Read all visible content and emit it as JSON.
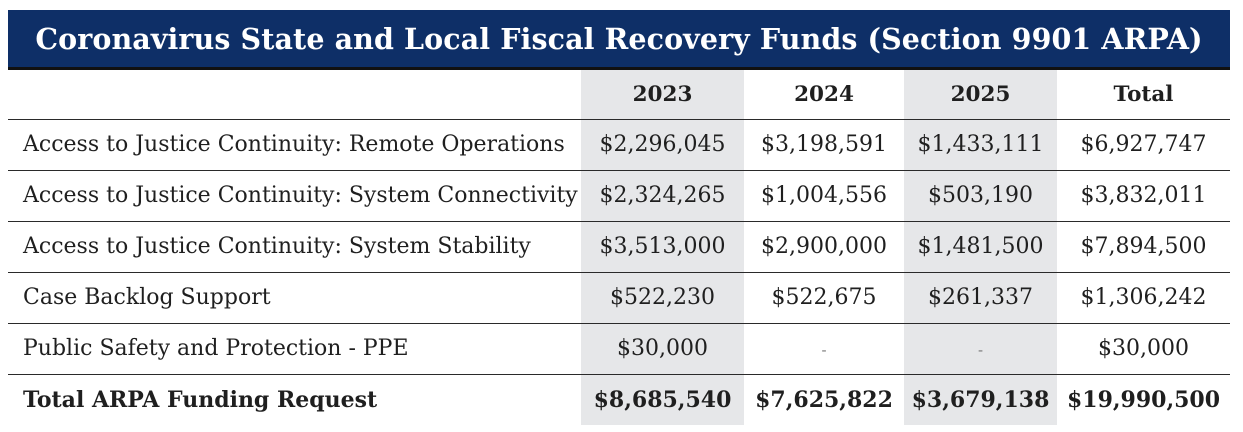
{
  "title": "Coronavirus State and Local Fiscal Recovery Funds (Section 9901 ARPA)",
  "columns": [
    "",
    "2023",
    "2024",
    "2025",
    "Total"
  ],
  "rows": [
    {
      "label": "Access to Justice Continuity: Remote Operations",
      "y2023": "$2,296,045",
      "y2024": "$3,198,591",
      "y2025": "$1,433,111",
      "total": "$6,927,747"
    },
    {
      "label": "Access to Justice Continuity: System Connectivity",
      "y2023": "$2,324,265",
      "y2024": "$1,004,556",
      "y2025": "$503,190",
      "total": "$3,832,011"
    },
    {
      "label": "Access to Justice Continuity: System Stability",
      "y2023": "$3,513,000",
      "y2024": "$2,900,000",
      "y2025": "$1,481,500",
      "total": "$7,894,500"
    },
    {
      "label": "Case Backlog Support",
      "y2023": "$522,230",
      "y2024": "$522,675",
      "y2025": "$261,337",
      "total": "$1,306,242"
    },
    {
      "label": "Public Safety and Protection - PPE",
      "y2023": "$30,000",
      "y2024": "-",
      "y2025": "-",
      "total": "$30,000"
    }
  ],
  "total_row": {
    "label": "Total ARPA Funding Request",
    "y2023": "$8,685,540",
    "y2024": "$7,625,822",
    "y2025": "$3,679,138",
    "total": "$19,990,500"
  },
  "colors": {
    "banner": "#0e2f67",
    "banner_text": "#ffffff",
    "shaded_column": "#e6e7e9",
    "rule": "#2a2a2a"
  }
}
